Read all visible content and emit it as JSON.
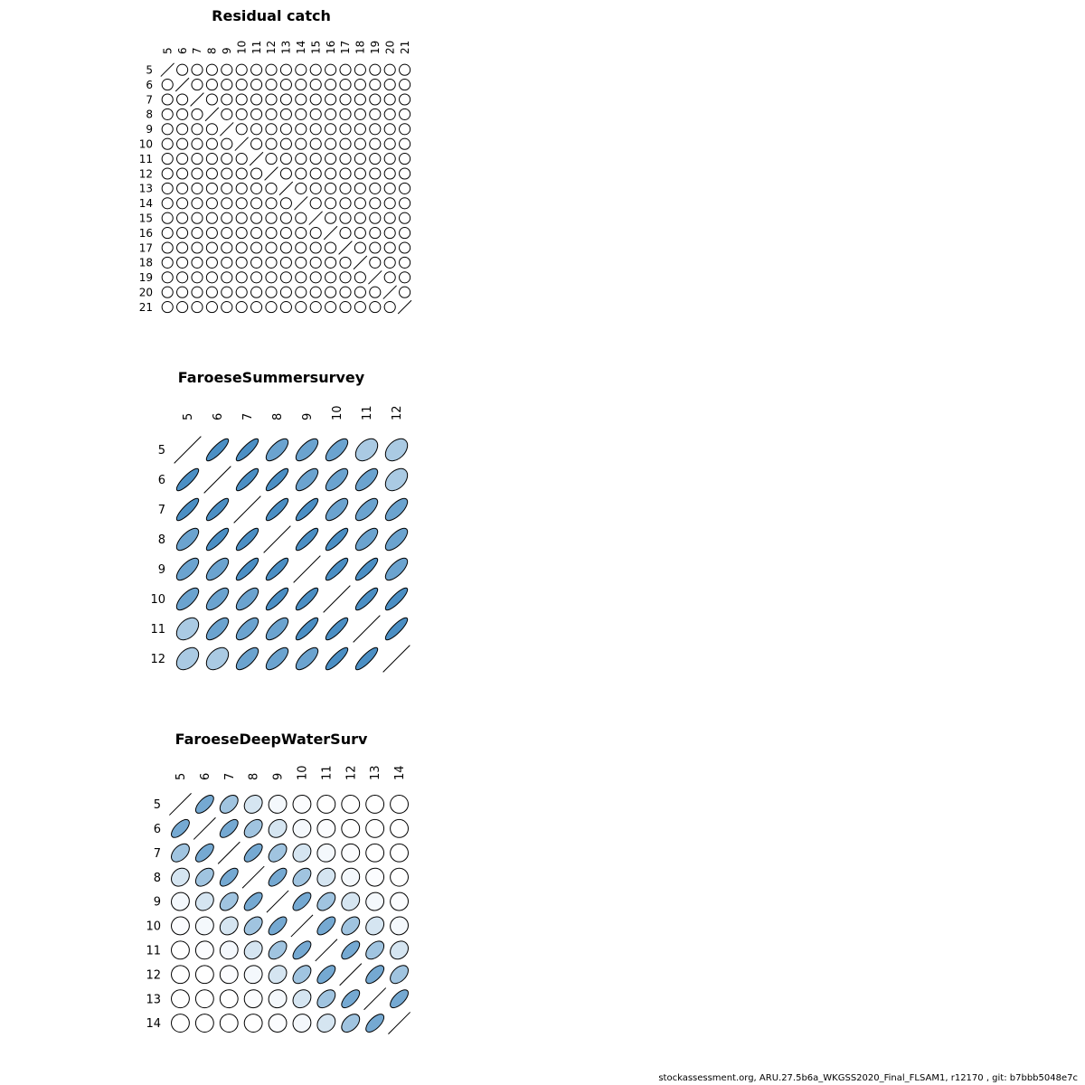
{
  "footer": "stockassessment.org, ARU.27.5b6a_WKGSS2020_Final_FLSAM1, r12170 , git: b7bbb5048e7c",
  "colors": {
    "outline": "#000000",
    "low": "#ffffff",
    "high": "#2b7bba"
  },
  "chart_data": [
    {
      "type": "heatmap",
      "title": "Residual catch",
      "labels": [
        "5",
        "6",
        "7",
        "8",
        "9",
        "10",
        "11",
        "12",
        "13",
        "14",
        "15",
        "16",
        "17",
        "18",
        "19",
        "20",
        "21"
      ],
      "matrix_rule": {
        "kind": "constant",
        "off_diagonal": 0.0
      }
    },
    {
      "type": "heatmap",
      "title": "FaroeseSummersurvey",
      "labels": [
        "5",
        "6",
        "7",
        "8",
        "9",
        "10",
        "11",
        "12"
      ],
      "values": [
        [
          1.0,
          0.85,
          0.85,
          0.7,
          0.7,
          0.7,
          0.4,
          0.4
        ],
        [
          0.85,
          1.0,
          0.85,
          0.85,
          0.7,
          0.7,
          0.7,
          0.4
        ],
        [
          0.85,
          0.85,
          1.0,
          0.85,
          0.85,
          0.7,
          0.7,
          0.7
        ],
        [
          0.7,
          0.85,
          0.85,
          1.0,
          0.85,
          0.85,
          0.7,
          0.7
        ],
        [
          0.7,
          0.7,
          0.85,
          0.85,
          1.0,
          0.85,
          0.85,
          0.7
        ],
        [
          0.7,
          0.7,
          0.7,
          0.85,
          0.85,
          1.0,
          0.85,
          0.85
        ],
        [
          0.4,
          0.7,
          0.7,
          0.7,
          0.85,
          0.85,
          1.0,
          0.85
        ],
        [
          0.4,
          0.4,
          0.7,
          0.7,
          0.7,
          0.85,
          0.85,
          1.0
        ]
      ]
    },
    {
      "type": "heatmap",
      "title": "FaroeseDeepWaterSurv",
      "labels": [
        "5",
        "6",
        "7",
        "8",
        "9",
        "10",
        "11",
        "12",
        "13",
        "14"
      ],
      "matrix_rule": {
        "kind": "toeplitz",
        "by_lag": [
          1.0,
          0.65,
          0.45,
          0.2,
          0.05,
          0.02,
          0.0,
          0.0,
          0.0,
          0.0
        ]
      }
    }
  ]
}
